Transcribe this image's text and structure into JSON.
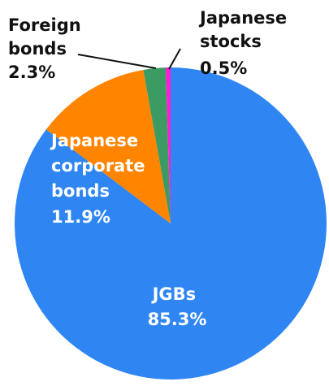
{
  "chart_data": {
    "type": "pie",
    "start": "12 o'clock",
    "direction": "counterclockwise",
    "series": [
      {
        "category": "JGBs",
        "value": 85.3,
        "value_label": "85.3%",
        "color": "#2f86f3"
      },
      {
        "category": "Japanese corporate bonds",
        "value": 11.9,
        "value_label": "11.9%",
        "color": "#ff8400"
      },
      {
        "category": "Foreign bonds",
        "value": 2.3,
        "value_label": "2.3%",
        "color": "#3c9b63"
      },
      {
        "category": "Japanese stocks",
        "value": 0.5,
        "value_label": "0.5%",
        "color": "#ff1bd6"
      }
    ],
    "labels": {
      "jgbs": {
        "name": "JGBs",
        "pct": "85.3%"
      },
      "corporate": {
        "lines": [
          "Japanese",
          "corporate",
          "bonds"
        ],
        "pct": "11.9%"
      },
      "foreign": {
        "lines": [
          "Foreign",
          "bonds"
        ],
        "pct": "2.3%"
      },
      "stocks": {
        "lines": [
          "Japanese",
          "stocks"
        ],
        "pct": "0.5%"
      }
    },
    "title": "",
    "legend": "none"
  }
}
